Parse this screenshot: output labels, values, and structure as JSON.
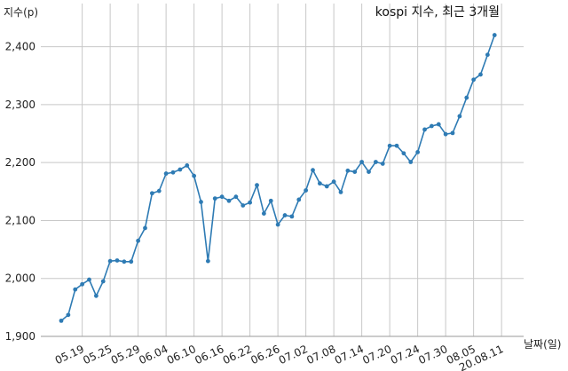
{
  "chart_data": {
    "type": "line",
    "title": "kospi 지수, 최근 3개월",
    "ylabel": "지수(p)",
    "xlabel": "날짜(일)",
    "ylim": [
      1900,
      2450
    ],
    "yticks": [
      1900,
      2000,
      2100,
      2200,
      2300,
      2400
    ],
    "ytick_labels": [
      "1,900",
      "2,000",
      "2,100",
      "2,200",
      "2,300",
      "2,400"
    ],
    "grid": true,
    "xtick_labels": [
      "05.19",
      "05.25",
      "05.29",
      "06.04",
      "06.10",
      "06.16",
      "06.22",
      "06.26",
      "07.02",
      "07.08",
      "07.14",
      "07.20",
      "07.24",
      "07.30",
      "08.05",
      "20.08.11"
    ],
    "xtick_indices": [
      3,
      7,
      11,
      15,
      19,
      23,
      27,
      31,
      35,
      39,
      43,
      47,
      51,
      55,
      59,
      63
    ],
    "series": [
      {
        "values": [
          1927,
          1937,
          1981,
          1990,
          1998,
          1970,
          1995,
          2030,
          2031,
          2029,
          2029,
          2065,
          2087,
          2147,
          2151,
          2181,
          2183,
          2188,
          2195,
          2177,
          2132,
          2030,
          2138,
          2141,
          2134,
          2141,
          2126,
          2131,
          2161,
          2112,
          2134,
          2093,
          2109,
          2107,
          2136,
          2152,
          2187,
          2164,
          2159,
          2167,
          2149,
          2186,
          2184,
          2201,
          2184,
          2201,
          2198,
          2229,
          2229,
          2216,
          2201,
          2218,
          2257,
          2263,
          2266,
          2249,
          2251,
          2280,
          2312,
          2343,
          2352,
          2386,
          2420
        ]
      }
    ]
  }
}
